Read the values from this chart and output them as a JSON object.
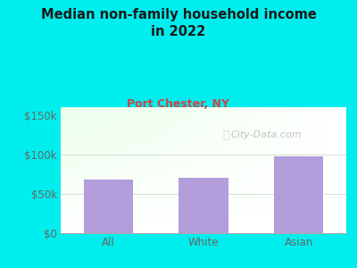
{
  "title": "Median non-family household income\nin 2022",
  "subtitle": "Port Chester, NY",
  "categories": [
    "All",
    "White",
    "Asian"
  ],
  "values": [
    68000,
    70000,
    98000
  ],
  "bar_color": "#b39ddb",
  "title_color": "#1a1a1a",
  "subtitle_color": "#cc4444",
  "background_color": "#00eeee",
  "yticks": [
    0,
    50000,
    100000,
    150000
  ],
  "ytick_labels": [
    "$0",
    "$50k",
    "$100k",
    "$150k"
  ],
  "ylim": [
    0,
    160000
  ],
  "watermark": "City-Data.com",
  "tick_color": "#666666",
  "spine_color": "#aaaaaa"
}
